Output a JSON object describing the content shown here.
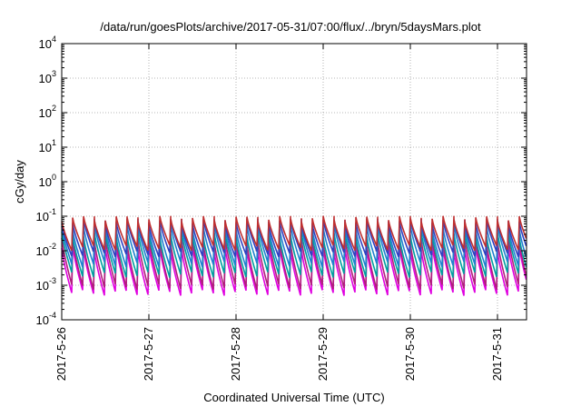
{
  "chart_data": {
    "type": "line",
    "title": "/data/run/goesPlots/archive/2017-05-31/07:00/flux/../bryn/5daysMars.plot",
    "xlabel": "Coordinated Universal Time (UTC)",
    "ylabel": "cGy/day",
    "xlim": [
      "2017-05-26 00:00",
      "2017-05-31 08:00"
    ],
    "ylim": [
      0.0001,
      10000
    ],
    "yscale": "log",
    "grid": true,
    "x_tick_labels": [
      "2017-5-26",
      "2017-5-27",
      "2017-5-28",
      "2017-5-29",
      "2017-5-30",
      "2017-5-31"
    ],
    "y_tick_labels": [
      {
        "base": "10",
        "exp": "-4",
        "value": 0.0001
      },
      {
        "base": "10",
        "exp": "-3",
        "value": 0.001
      },
      {
        "base": "10",
        "exp": "-2",
        "value": 0.01
      },
      {
        "base": "10",
        "exp": "-1",
        "value": 0.1
      },
      {
        "base": "10",
        "exp": "0",
        "value": 1
      },
      {
        "base": "10",
        "exp": "1",
        "value": 10
      },
      {
        "base": "10",
        "exp": "2",
        "value": 100
      },
      {
        "base": "10",
        "exp": "3",
        "value": 1000
      },
      {
        "base": "10",
        "exp": "4",
        "value": 10000
      }
    ],
    "cycle_hours": 3,
    "series": [
      {
        "color": "#e000e0",
        "peak": 0.012,
        "trough": 0.0006
      },
      {
        "color": "#b0207a",
        "peak": 0.02,
        "trough": 0.0009
      },
      {
        "color": "#00a0a0",
        "peak": 0.03,
        "trough": 0.002
      },
      {
        "color": "#2080d0",
        "peak": 0.05,
        "trough": 0.004
      },
      {
        "color": "#3040c0",
        "peak": 0.07,
        "trough": 0.008
      },
      {
        "color": "#c03030",
        "peak": 0.085,
        "trough": 0.012
      }
    ]
  }
}
